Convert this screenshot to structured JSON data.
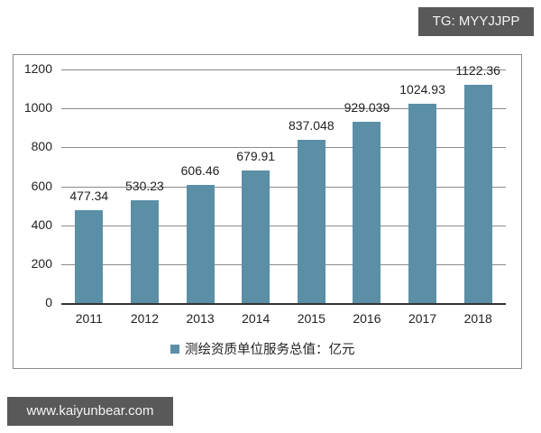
{
  "watermarks": {
    "top_right": "TG: MYYJJPP",
    "bottom_left": "www.kaiyunbear.com"
  },
  "colors": {
    "bar": "#5a8fa6",
    "badge_bg": "#595959"
  },
  "chart_data": {
    "type": "bar",
    "title": "",
    "xlabel": "",
    "ylabel": "",
    "categories": [
      "2011",
      "2012",
      "2013",
      "2014",
      "2015",
      "2016",
      "2017",
      "2018"
    ],
    "series": [
      {
        "name": "测绘资质单位服务总值：亿元",
        "values": [
          477.34,
          530.23,
          606.46,
          679.91,
          837.048,
          929.039,
          1024.93,
          1122.36
        ]
      }
    ],
    "value_labels": [
      "477.34",
      "530.23",
      "606.46",
      "679.91",
      "837.048",
      "929.039",
      "1024.93",
      "1122.36"
    ],
    "ylim": [
      0,
      1200
    ],
    "yticks": [
      "0",
      "200",
      "400",
      "600",
      "800",
      "1000",
      "1200"
    ],
    "grid": true,
    "legend_position": "bottom"
  }
}
